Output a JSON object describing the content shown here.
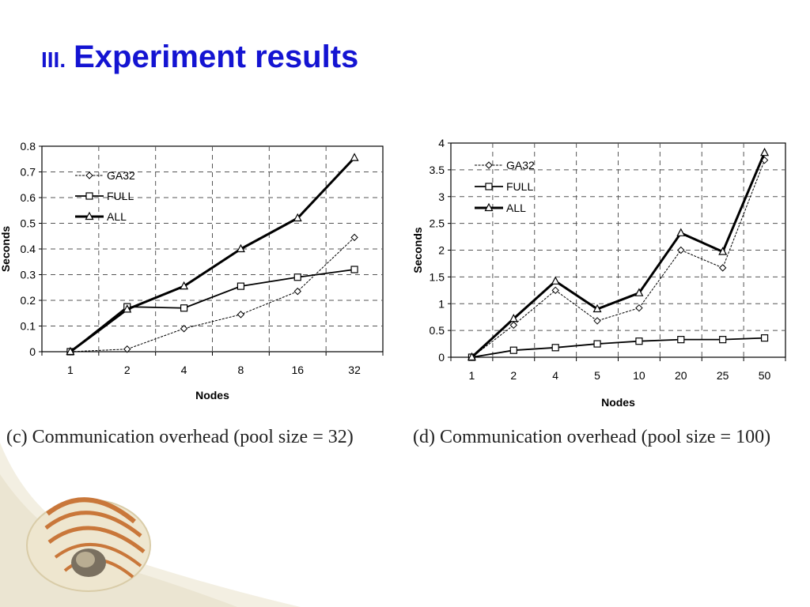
{
  "slide": {
    "title_number": "III.",
    "title_text": "Experiment results"
  },
  "colors": {
    "title": "#1414d2",
    "chart_line": "#000000",
    "grid": "#555555",
    "shell_light": "#f1ecd9",
    "shell_stripe": "#c9773a"
  },
  "captions": {
    "left": "(c) Communication overhead (pool size = 32)",
    "right": "(d) Communication overhead (pool size = 100)"
  },
  "chart_data": [
    {
      "type": "line",
      "xlabel": "Nodes",
      "ylabel": "Seconds",
      "categories": [
        "1",
        "2",
        "4",
        "8",
        "16",
        "32"
      ],
      "ylim": [
        0,
        0.8
      ],
      "yticks": [
        "0",
        "0.1",
        "0.2",
        "0.3",
        "0.4",
        "0.5",
        "0.6",
        "0.7",
        "0.8"
      ],
      "grid": true,
      "legend_position": "top-left",
      "series": [
        {
          "name": "GA32",
          "marker": "diamond",
          "line": "thin",
          "values": [
            0,
            0.01,
            0.09,
            0.145,
            0.235,
            0.445
          ]
        },
        {
          "name": "FULL",
          "marker": "square",
          "line": "medium",
          "values": [
            0,
            0.175,
            0.17,
            0.255,
            0.29,
            0.32
          ]
        },
        {
          "name": "ALL",
          "marker": "triangle",
          "line": "thick",
          "values": [
            0,
            0.165,
            0.255,
            0.4,
            0.52,
            0.755
          ]
        }
      ]
    },
    {
      "type": "line",
      "xlabel": "Nodes",
      "ylabel": "Seconds",
      "categories": [
        "1",
        "2",
        "4",
        "5",
        "10",
        "20",
        "25",
        "50"
      ],
      "ylim": [
        0,
        4
      ],
      "yticks": [
        "0",
        "0.5",
        "1",
        "1.5",
        "2",
        "2.5",
        "3",
        "3.5",
        "4"
      ],
      "grid": true,
      "legend_position": "top-left",
      "series": [
        {
          "name": "GA32",
          "marker": "diamond",
          "line": "thin",
          "values": [
            0,
            0.6,
            1.25,
            0.68,
            0.92,
            2.0,
            1.67,
            3.68
          ]
        },
        {
          "name": "FULL",
          "marker": "square",
          "line": "medium",
          "values": [
            0,
            0.13,
            0.18,
            0.25,
            0.3,
            0.33,
            0.33,
            0.36
          ]
        },
        {
          "name": "ALL",
          "marker": "triangle",
          "line": "thick",
          "values": [
            0,
            0.72,
            1.42,
            0.9,
            1.2,
            2.32,
            1.97,
            3.82
          ]
        }
      ]
    }
  ]
}
